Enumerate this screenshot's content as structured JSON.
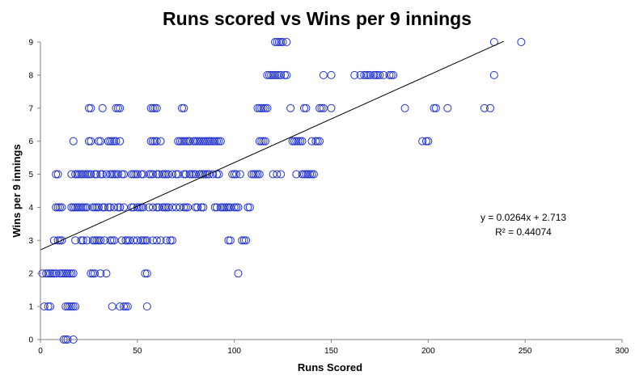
{
  "chart_data": {
    "type": "scatter",
    "title": "Runs scored vs Wins per 9 innings",
    "xlabel": "Runs Scored",
    "ylabel": "Wins per 9 innings",
    "xlim": [
      0,
      300
    ],
    "ylim": [
      0,
      9
    ],
    "xticks": [
      "0",
      "50",
      "100",
      "150",
      "200",
      "250",
      "300"
    ],
    "yticks": [
      "0",
      "1",
      "2",
      "3",
      "4",
      "5",
      "6",
      "7",
      "8",
      "9"
    ],
    "grid": false,
    "marker_color": "#2233cc",
    "trendline": {
      "type": "linear",
      "slope": 0.0264,
      "intercept": 2.713,
      "x_range": [
        0,
        239
      ],
      "equation": "y = 0.0264x + 2.713",
      "r_squared": "R² = 0.44074"
    },
    "points": [
      [
        12,
        0
      ],
      [
        13,
        0
      ],
      [
        14,
        0
      ],
      [
        17,
        0
      ],
      [
        2,
        1
      ],
      [
        4,
        1
      ],
      [
        5,
        1
      ],
      [
        13,
        1
      ],
      [
        14,
        1
      ],
      [
        15,
        1
      ],
      [
        16,
        1
      ],
      [
        17,
        1
      ],
      [
        18,
        1
      ],
      [
        37,
        1
      ],
      [
        41,
        1
      ],
      [
        43,
        1
      ],
      [
        44,
        1
      ],
      [
        45,
        1
      ],
      [
        55,
        1
      ],
      [
        1,
        2
      ],
      [
        3,
        2
      ],
      [
        4,
        2
      ],
      [
        5,
        2
      ],
      [
        6,
        2
      ],
      [
        7,
        2
      ],
      [
        8,
        2
      ],
      [
        10,
        2
      ],
      [
        11,
        2
      ],
      [
        12,
        2
      ],
      [
        13,
        2
      ],
      [
        14,
        2
      ],
      [
        15,
        2
      ],
      [
        16,
        2
      ],
      [
        17,
        2
      ],
      [
        26,
        2
      ],
      [
        27,
        2
      ],
      [
        28,
        2
      ],
      [
        31,
        2
      ],
      [
        34,
        2
      ],
      [
        54,
        2
      ],
      [
        55,
        2
      ],
      [
        102,
        2
      ],
      [
        7,
        3
      ],
      [
        9,
        3
      ],
      [
        10,
        3
      ],
      [
        11,
        3
      ],
      [
        18,
        3
      ],
      [
        21,
        3
      ],
      [
        22,
        3
      ],
      [
        24,
        3
      ],
      [
        27,
        3
      ],
      [
        28,
        3
      ],
      [
        29,
        3
      ],
      [
        30,
        3
      ],
      [
        31,
        3
      ],
      [
        33,
        3
      ],
      [
        36,
        3
      ],
      [
        37,
        3
      ],
      [
        38,
        3
      ],
      [
        42,
        3
      ],
      [
        44,
        3
      ],
      [
        45,
        3
      ],
      [
        46,
        3
      ],
      [
        48,
        3
      ],
      [
        50,
        3
      ],
      [
        52,
        3
      ],
      [
        53,
        3
      ],
      [
        54,
        3
      ],
      [
        55,
        3
      ],
      [
        58,
        3
      ],
      [
        60,
        3
      ],
      [
        62,
        3
      ],
      [
        65,
        3
      ],
      [
        67,
        3
      ],
      [
        68,
        3
      ],
      [
        97,
        3
      ],
      [
        98,
        3
      ],
      [
        104,
        3
      ],
      [
        105,
        3
      ],
      [
        106,
        3
      ],
      [
        8,
        4
      ],
      [
        9,
        4
      ],
      [
        10,
        4
      ],
      [
        11,
        4
      ],
      [
        16,
        4
      ],
      [
        17,
        4
      ],
      [
        18,
        4
      ],
      [
        19,
        4
      ],
      [
        20,
        4
      ],
      [
        21,
        4
      ],
      [
        22,
        4
      ],
      [
        23,
        4
      ],
      [
        24,
        4
      ],
      [
        27,
        4
      ],
      [
        28,
        4
      ],
      [
        29,
        4
      ],
      [
        30,
        4
      ],
      [
        32,
        4
      ],
      [
        33,
        4
      ],
      [
        35,
        4
      ],
      [
        36,
        4
      ],
      [
        38,
        4
      ],
      [
        40,
        4
      ],
      [
        41,
        4
      ],
      [
        43,
        4
      ],
      [
        47,
        4
      ],
      [
        48,
        4
      ],
      [
        50,
        4
      ],
      [
        51,
        4
      ],
      [
        52,
        4
      ],
      [
        53,
        4
      ],
      [
        56,
        4
      ],
      [
        58,
        4
      ],
      [
        60,
        4
      ],
      [
        61,
        4
      ],
      [
        63,
        4
      ],
      [
        64,
        4
      ],
      [
        65,
        4
      ],
      [
        66,
        4
      ],
      [
        68,
        4
      ],
      [
        70,
        4
      ],
      [
        72,
        4
      ],
      [
        74,
        4
      ],
      [
        75,
        4
      ],
      [
        76,
        4
      ],
      [
        80,
        4
      ],
      [
        81,
        4
      ],
      [
        83,
        4
      ],
      [
        84,
        4
      ],
      [
        90,
        4
      ],
      [
        91,
        4
      ],
      [
        93,
        4
      ],
      [
        94,
        4
      ],
      [
        95,
        4
      ],
      [
        96,
        4
      ],
      [
        97,
        4
      ],
      [
        98,
        4
      ],
      [
        100,
        4
      ],
      [
        101,
        4
      ],
      [
        102,
        4
      ],
      [
        107,
        4
      ],
      [
        108,
        4
      ],
      [
        8,
        5
      ],
      [
        9,
        5
      ],
      [
        16,
        5
      ],
      [
        18,
        5
      ],
      [
        19,
        5
      ],
      [
        20,
        5
      ],
      [
        21,
        5
      ],
      [
        22,
        5
      ],
      [
        23,
        5
      ],
      [
        24,
        5
      ],
      [
        25,
        5
      ],
      [
        26,
        5
      ],
      [
        28,
        5
      ],
      [
        29,
        5
      ],
      [
        31,
        5
      ],
      [
        32,
        5
      ],
      [
        34,
        5
      ],
      [
        36,
        5
      ],
      [
        37,
        5
      ],
      [
        38,
        5
      ],
      [
        39,
        5
      ],
      [
        40,
        5
      ],
      [
        42,
        5
      ],
      [
        43,
        5
      ],
      [
        47,
        5
      ],
      [
        48,
        5
      ],
      [
        49,
        5
      ],
      [
        50,
        5
      ],
      [
        52,
        5
      ],
      [
        53,
        5
      ],
      [
        56,
        5
      ],
      [
        57,
        5
      ],
      [
        58,
        5
      ],
      [
        60,
        5
      ],
      [
        61,
        5
      ],
      [
        63,
        5
      ],
      [
        64,
        5
      ],
      [
        65,
        5
      ],
      [
        66,
        5
      ],
      [
        68,
        5
      ],
      [
        70,
        5
      ],
      [
        71,
        5
      ],
      [
        74,
        5
      ],
      [
        75,
        5
      ],
      [
        77,
        5
      ],
      [
        78,
        5
      ],
      [
        79,
        5
      ],
      [
        80,
        5
      ],
      [
        82,
        5
      ],
      [
        83,
        5
      ],
      [
        84,
        5
      ],
      [
        85,
        5
      ],
      [
        86,
        5
      ],
      [
        87,
        5
      ],
      [
        89,
        5
      ],
      [
        91,
        5
      ],
      [
        92,
        5
      ],
      [
        99,
        5
      ],
      [
        100,
        5
      ],
      [
        101,
        5
      ],
      [
        103,
        5
      ],
      [
        109,
        5
      ],
      [
        110,
        5
      ],
      [
        111,
        5
      ],
      [
        112,
        5
      ],
      [
        113,
        5
      ],
      [
        120,
        5
      ],
      [
        122,
        5
      ],
      [
        124,
        5
      ],
      [
        132,
        5
      ],
      [
        135,
        5
      ],
      [
        136,
        5
      ],
      [
        137,
        5
      ],
      [
        138,
        5
      ],
      [
        139,
        5
      ],
      [
        140,
        5
      ],
      [
        141,
        5
      ],
      [
        17,
        6
      ],
      [
        25,
        6
      ],
      [
        26,
        6
      ],
      [
        30,
        6
      ],
      [
        31,
        6
      ],
      [
        35,
        6
      ],
      [
        36,
        6
      ],
      [
        37,
        6
      ],
      [
        38,
        6
      ],
      [
        39,
        6
      ],
      [
        41,
        6
      ],
      [
        57,
        6
      ],
      [
        58,
        6
      ],
      [
        59,
        6
      ],
      [
        60,
        6
      ],
      [
        62,
        6
      ],
      [
        71,
        6
      ],
      [
        72,
        6
      ],
      [
        73,
        6
      ],
      [
        74,
        6
      ],
      [
        75,
        6
      ],
      [
        76,
        6
      ],
      [
        77,
        6
      ],
      [
        79,
        6
      ],
      [
        80,
        6
      ],
      [
        81,
        6
      ],
      [
        82,
        6
      ],
      [
        83,
        6
      ],
      [
        84,
        6
      ],
      [
        85,
        6
      ],
      [
        86,
        6
      ],
      [
        87,
        6
      ],
      [
        88,
        6
      ],
      [
        89,
        6
      ],
      [
        90,
        6
      ],
      [
        91,
        6
      ],
      [
        92,
        6
      ],
      [
        93,
        6
      ],
      [
        113,
        6
      ],
      [
        114,
        6
      ],
      [
        115,
        6
      ],
      [
        116,
        6
      ],
      [
        130,
        6
      ],
      [
        131,
        6
      ],
      [
        132,
        6
      ],
      [
        133,
        6
      ],
      [
        134,
        6
      ],
      [
        135,
        6
      ],
      [
        140,
        6
      ],
      [
        142,
        6
      ],
      [
        143,
        6
      ],
      [
        144,
        6
      ],
      [
        197,
        6
      ],
      [
        199,
        6
      ],
      [
        200,
        6
      ],
      [
        25,
        7
      ],
      [
        26,
        7
      ],
      [
        32,
        7
      ],
      [
        39,
        7
      ],
      [
        40,
        7
      ],
      [
        41,
        7
      ],
      [
        57,
        7
      ],
      [
        58,
        7
      ],
      [
        59,
        7
      ],
      [
        60,
        7
      ],
      [
        73,
        7
      ],
      [
        74,
        7
      ],
      [
        112,
        7
      ],
      [
        113,
        7
      ],
      [
        114,
        7
      ],
      [
        115,
        7
      ],
      [
        116,
        7
      ],
      [
        117,
        7
      ],
      [
        129,
        7
      ],
      [
        136,
        7
      ],
      [
        137,
        7
      ],
      [
        144,
        7
      ],
      [
        145,
        7
      ],
      [
        146,
        7
      ],
      [
        150,
        7
      ],
      [
        188,
        7
      ],
      [
        203,
        7
      ],
      [
        204,
        7
      ],
      [
        210,
        7
      ],
      [
        229,
        7
      ],
      [
        232,
        7
      ],
      [
        117,
        8
      ],
      [
        118,
        8
      ],
      [
        119,
        8
      ],
      [
        120,
        8
      ],
      [
        121,
        8
      ],
      [
        122,
        8
      ],
      [
        123,
        8
      ],
      [
        124,
        8
      ],
      [
        126,
        8
      ],
      [
        127,
        8
      ],
      [
        146,
        8
      ],
      [
        150,
        8
      ],
      [
        162,
        8
      ],
      [
        165,
        8
      ],
      [
        167,
        8
      ],
      [
        168,
        8
      ],
      [
        169,
        8
      ],
      [
        170,
        8
      ],
      [
        172,
        8
      ],
      [
        173,
        8
      ],
      [
        174,
        8
      ],
      [
        175,
        8
      ],
      [
        177,
        8
      ],
      [
        180,
        8
      ],
      [
        181,
        8
      ],
      [
        182,
        8
      ],
      [
        234,
        8
      ],
      [
        121,
        9
      ],
      [
        122,
        9
      ],
      [
        123,
        9
      ],
      [
        124,
        9
      ],
      [
        125,
        9
      ],
      [
        127,
        9
      ],
      [
        234,
        9
      ],
      [
        248,
        9
      ]
    ]
  }
}
